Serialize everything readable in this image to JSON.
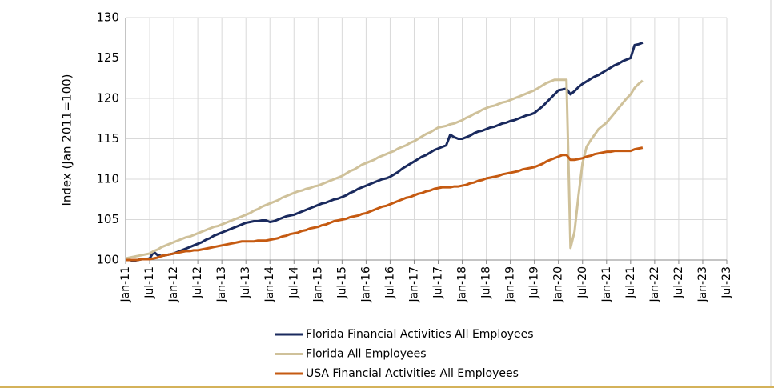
{
  "chart_data": {
    "type": "line",
    "y_label": "Index (Jan 2011=100)",
    "categories": [
      "Jan-11",
      null,
      null,
      null,
      null,
      null,
      "Jul-11",
      null,
      null,
      null,
      null,
      null,
      "Jan-12",
      null,
      null,
      null,
      null,
      null,
      "Jul-12",
      null,
      null,
      null,
      null,
      null,
      "Jan-13",
      null,
      null,
      null,
      null,
      null,
      "Jul-13",
      null,
      null,
      null,
      null,
      null,
      "Jan-14",
      null,
      null,
      null,
      null,
      null,
      "Jul-14",
      null,
      null,
      null,
      null,
      null,
      "Jan-15",
      null,
      null,
      null,
      null,
      null,
      "Jul-15",
      null,
      null,
      null,
      null,
      null,
      "Jan-16",
      null,
      null,
      null,
      null,
      null,
      "Jul-16",
      null,
      null,
      null,
      null,
      null,
      "Jan-17",
      null,
      null,
      null,
      null,
      null,
      "Jul-17",
      null,
      null,
      null,
      null,
      null,
      "Jan-18",
      null,
      null,
      null,
      null,
      null,
      "Jul-18",
      null,
      null,
      null,
      null,
      null,
      "Jan-19",
      null,
      null,
      null,
      null,
      null,
      "Jul-19",
      null,
      null,
      null,
      null,
      null,
      "Jan-20",
      null,
      null,
      null,
      null,
      null,
      "Jul-20",
      null,
      null,
      null,
      null,
      null,
      "Jan-21",
      null,
      null,
      null,
      null,
      null,
      "Jul-21",
      null,
      null,
      null,
      null,
      null,
      "Jan-22",
      null,
      null,
      null,
      null,
      null,
      "Jul-22",
      null,
      null,
      null,
      null,
      null,
      "Jan-23",
      null,
      null,
      null,
      null,
      null,
      "Jul-23"
    ],
    "series": [
      {
        "name": "Florida Financial Activities All Employees",
        "color": "#1a2a5e",
        "values": [
          100,
          100.0,
          99.9,
          100.0,
          100.1,
          100.1,
          100.2,
          101.0,
          100.6,
          100.5,
          100.6,
          100.7,
          100.8,
          101.0,
          101.2,
          101.4,
          101.6,
          101.8,
          102.0,
          102.2,
          102.5,
          102.7,
          103.0,
          103.2,
          103.4,
          103.6,
          103.8,
          104.0,
          104.2,
          104.4,
          104.6,
          104.7,
          104.8,
          104.8,
          104.9,
          104.9,
          104.7,
          104.8,
          105.0,
          105.2,
          105.4,
          105.5,
          105.6,
          105.8,
          106.0,
          106.2,
          106.4,
          106.6,
          106.8,
          107.0,
          107.1,
          107.3,
          107.5,
          107.6,
          107.8,
          108.0,
          108.3,
          108.5,
          108.8,
          109.0,
          109.2,
          109.4,
          109.6,
          109.8,
          110.0,
          110.1,
          110.3,
          110.6,
          110.9,
          111.3,
          111.6,
          111.9,
          112.2,
          112.5,
          112.8,
          113.0,
          113.3,
          113.6,
          113.8,
          114.0,
          114.2,
          115.5,
          115.2,
          115.0,
          115.0,
          115.2,
          115.4,
          115.7,
          115.9,
          116.0,
          116.2,
          116.4,
          116.5,
          116.7,
          116.9,
          117.0,
          117.2,
          117.3,
          117.5,
          117.7,
          117.9,
          118.0,
          118.2,
          118.6,
          119.0,
          119.5,
          120.0,
          120.5,
          121.0,
          121.1,
          121.2,
          120.5,
          120.9,
          121.4,
          121.8,
          122.1,
          122.4,
          122.7,
          122.9,
          123.2,
          123.5,
          123.8,
          124.1,
          124.3,
          124.6,
          124.8,
          125.0,
          126.6,
          126.7,
          126.9,
          null,
          null,
          null,
          null,
          null,
          null,
          null,
          null,
          null,
          null,
          null,
          null,
          null,
          null,
          null,
          null,
          null,
          null,
          null,
          null,
          null
        ]
      },
      {
        "name": "Florida All Employees",
        "color": "#cfc19a",
        "values": [
          100.2,
          100.3,
          100.4,
          100.5,
          100.6,
          100.7,
          100.8,
          101.1,
          101.3,
          101.6,
          101.8,
          102.0,
          102.2,
          102.4,
          102.6,
          102.8,
          102.9,
          103.1,
          103.3,
          103.5,
          103.7,
          103.9,
          104.1,
          104.2,
          104.4,
          104.6,
          104.8,
          105.0,
          105.2,
          105.4,
          105.6,
          105.8,
          106.1,
          106.3,
          106.6,
          106.8,
          107.0,
          107.2,
          107.4,
          107.7,
          107.9,
          108.1,
          108.3,
          108.5,
          108.6,
          108.8,
          108.9,
          109.1,
          109.2,
          109.4,
          109.6,
          109.8,
          110.0,
          110.2,
          110.4,
          110.7,
          111.0,
          111.2,
          111.5,
          111.8,
          112.0,
          112.2,
          112.4,
          112.7,
          112.9,
          113.1,
          113.3,
          113.5,
          113.8,
          114.0,
          114.2,
          114.5,
          114.7,
          115.0,
          115.3,
          115.6,
          115.8,
          116.1,
          116.4,
          116.5,
          116.6,
          116.8,
          116.9,
          117.1,
          117.3,
          117.6,
          117.8,
          118.1,
          118.3,
          118.6,
          118.8,
          119.0,
          119.1,
          119.3,
          119.5,
          119.6,
          119.8,
          120.0,
          120.2,
          120.4,
          120.6,
          120.8,
          121.0,
          121.3,
          121.6,
          121.9,
          122.1,
          122.3,
          122.3,
          122.3,
          122.3,
          101.5,
          103.5,
          108.0,
          112.0,
          114.0,
          114.8,
          115.5,
          116.2,
          116.6,
          117.0,
          117.6,
          118.2,
          118.8,
          119.4,
          120.0,
          120.5,
          121.3,
          121.8,
          122.2,
          null,
          null,
          null,
          null,
          null,
          null,
          null,
          null,
          null,
          null,
          null,
          null,
          null,
          null,
          null,
          null,
          null,
          null,
          null,
          null,
          null
        ]
      },
      {
        "name": "USA Financial Activities All Employees",
        "color": "#c55a11",
        "values": [
          100.0,
          100.0,
          100.0,
          100.0,
          100.1,
          100.1,
          100.1,
          100.2,
          100.3,
          100.5,
          100.6,
          100.7,
          100.8,
          100.9,
          101.0,
          101.1,
          101.1,
          101.2,
          101.2,
          101.3,
          101.4,
          101.5,
          101.6,
          101.7,
          101.8,
          101.9,
          102.0,
          102.1,
          102.2,
          102.3,
          102.3,
          102.3,
          102.3,
          102.4,
          102.4,
          102.4,
          102.5,
          102.6,
          102.7,
          102.9,
          103.0,
          103.2,
          103.3,
          103.4,
          103.6,
          103.7,
          103.9,
          104.0,
          104.1,
          104.3,
          104.4,
          104.6,
          104.8,
          104.9,
          105.0,
          105.1,
          105.3,
          105.4,
          105.5,
          105.7,
          105.8,
          106.0,
          106.2,
          106.4,
          106.6,
          106.7,
          106.9,
          107.1,
          107.3,
          107.5,
          107.7,
          107.8,
          108.0,
          108.2,
          108.3,
          108.5,
          108.6,
          108.8,
          108.9,
          109.0,
          109.0,
          109.0,
          109.1,
          109.1,
          109.2,
          109.3,
          109.5,
          109.6,
          109.8,
          109.9,
          110.1,
          110.2,
          110.3,
          110.4,
          110.6,
          110.7,
          110.8,
          110.9,
          111.0,
          111.2,
          111.3,
          111.4,
          111.5,
          111.7,
          111.9,
          112.2,
          112.4,
          112.6,
          112.8,
          113.0,
          113.0,
          112.4,
          112.4,
          112.5,
          112.6,
          112.8,
          112.9,
          113.1,
          113.2,
          113.3,
          113.4,
          113.4,
          113.5,
          113.5,
          113.5,
          113.5,
          113.5,
          113.7,
          113.8,
          113.9,
          null,
          null,
          null,
          null,
          null,
          null,
          null,
          null,
          null,
          null,
          null,
          null,
          null,
          null,
          null,
          null,
          null,
          null,
          null,
          null,
          null
        ]
      }
    ],
    "ylim": [
      100,
      130
    ],
    "yticks": [
      100,
      105,
      110,
      115,
      120,
      125,
      130
    ],
    "grid": true,
    "legend": "bottom"
  }
}
